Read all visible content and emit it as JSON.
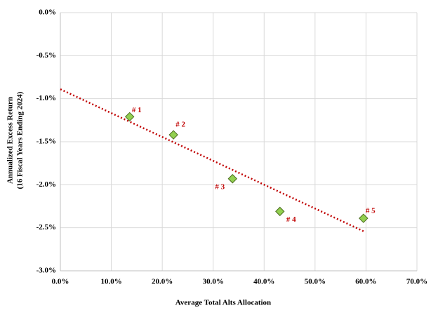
{
  "chart_data": {
    "type": "scatter",
    "xlabel": "Average Total Alts Allocation",
    "ylabel": [
      "Annualized Excess Return",
      "(16 Fiscal Years Ending 2024)"
    ],
    "x": [
      13.6,
      22.2,
      33.8,
      43.1,
      59.5
    ],
    "values": [
      -1.21,
      -1.42,
      -1.93,
      -2.31,
      -2.39
    ],
    "point_labels": [
      "# 1",
      "# 2",
      "# 3",
      "# 4",
      "# 5"
    ],
    "color": "#92d050",
    "edge_color": "#4a6b1f",
    "label_color": "#c00000",
    "trendline": {
      "x": [
        0,
        59.5
      ],
      "y": [
        -0.89,
        -2.54
      ],
      "color": "#c00000"
    },
    "xlim": [
      0,
      70
    ],
    "xticks": [
      {
        "value": 0,
        "label": "0.0%"
      },
      {
        "value": 10,
        "label": "10.0%"
      },
      {
        "value": 20,
        "label": "20.0%"
      },
      {
        "value": 30,
        "label": "30.0%"
      },
      {
        "value": 40,
        "label": "40.0%"
      },
      {
        "value": 50,
        "label": "50.0%"
      },
      {
        "value": 60,
        "label": "60.0%"
      },
      {
        "value": 70,
        "label": "70.0%"
      }
    ],
    "ylim": [
      -3,
      0
    ],
    "yticks": [
      {
        "value": 0,
        "label": "0.0%"
      },
      {
        "value": -0.5,
        "label": "-0.5%"
      },
      {
        "value": -1,
        "label": "-1.0%"
      },
      {
        "value": -1.5,
        "label": "-1.5%"
      },
      {
        "value": -2,
        "label": "-2.0%"
      },
      {
        "value": -2.5,
        "label": "-2.5%"
      },
      {
        "value": -3,
        "label": "-3.0%"
      }
    ],
    "grid": true
  }
}
